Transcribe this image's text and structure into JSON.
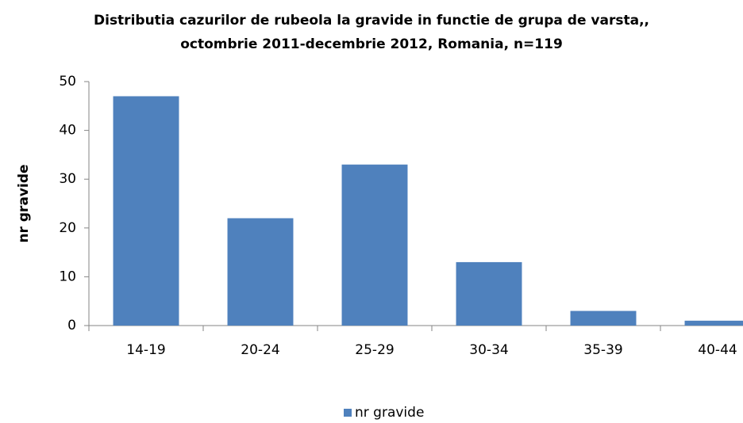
{
  "chart_data": {
    "type": "bar",
    "title": [
      "Distributia cazurilor de rubeola la gravide in functie de grupa de varsta,,",
      "octombrie 2011-decembrie 2012, Romania, n=119"
    ],
    "y_label": "nr gravide",
    "categories": [
      "14-19",
      "20-24",
      "25-29",
      "30-34",
      "35-39",
      "40-44"
    ],
    "series": [
      {
        "name": "nr gravide",
        "color": "#4f81bd",
        "values": [
          47,
          22,
          33,
          13,
          3,
          1
        ]
      }
    ],
    "ylim": [
      0,
      50
    ],
    "yticks": [
      0,
      10,
      20,
      30,
      40,
      50
    ],
    "grid": false,
    "legend": "bottom"
  }
}
